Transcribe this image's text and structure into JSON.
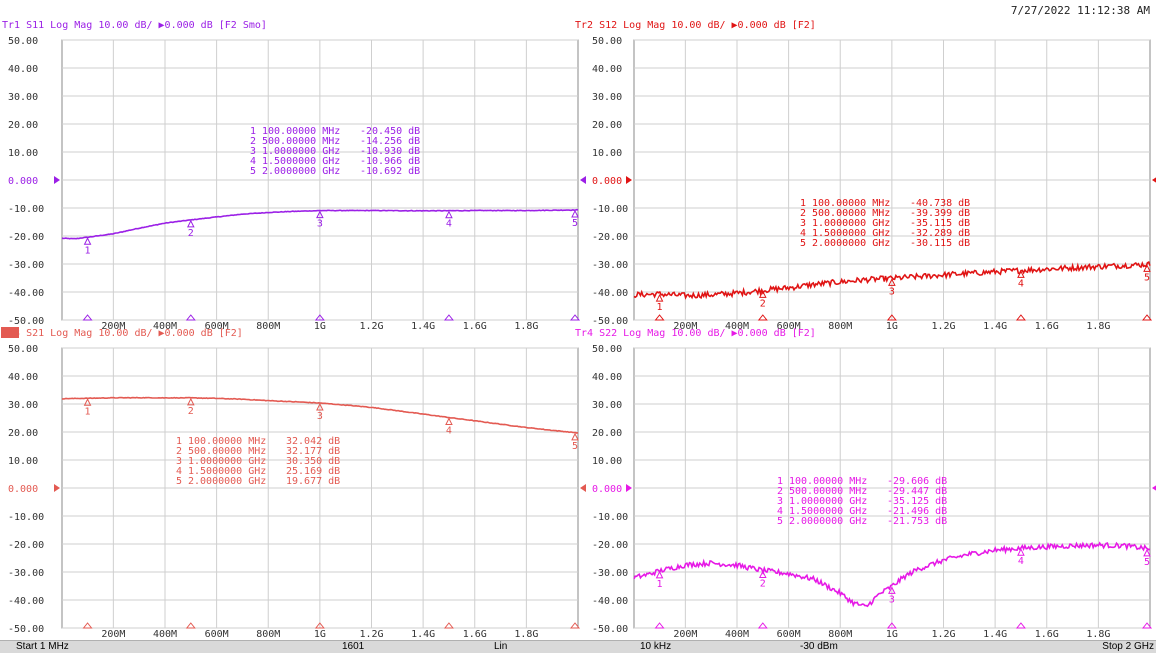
{
  "timestamp": "7/27/2022 11:12:38 AM",
  "status_bar": {
    "start": "Start 1 MHz",
    "points": "1601",
    "sweep_type": "Lin",
    "if_bw": "10 kHz",
    "power": "-30 dBm",
    "stop": "Stop 2 GHz"
  },
  "chart_data": [
    {
      "type": "line",
      "trace": "Tr1",
      "title": "Tr1 S11 Log Mag 10.00 dB/ ▶0.000 dB [F2 Smo]",
      "color": "#9b20e6",
      "ref_label": "0.000",
      "ylim": [
        -50,
        50
      ],
      "xlim": [
        0.001,
        2.0
      ],
      "y_ticks": [
        "50.00",
        "40.00",
        "30.00",
        "20.00",
        "10.00",
        "0.000",
        "-10.00",
        "-20.00",
        "-30.00",
        "-40.00",
        "-50.00"
      ],
      "x_ticks": [
        "200M",
        "400M",
        "600M",
        "800M",
        "1G",
        "1.2G",
        "1.4G",
        "1.6G",
        "1.8G"
      ],
      "x_tick_values": [
        0.2,
        0.4,
        0.6,
        0.8,
        1.0,
        1.2,
        1.4,
        1.6,
        1.8
      ],
      "x": [
        0.001,
        0.05,
        0.1,
        0.2,
        0.3,
        0.4,
        0.5,
        0.6,
        0.7,
        0.8,
        0.9,
        1.0,
        1.2,
        1.4,
        1.5,
        1.6,
        1.8,
        1.9,
        2.0
      ],
      "y": [
        -20.8,
        -21.0,
        -20.45,
        -19.2,
        -17.2,
        -15.4,
        -14.26,
        -13.2,
        -12.2,
        -11.6,
        -11.2,
        -10.93,
        -10.9,
        -11.0,
        -10.97,
        -10.9,
        -10.9,
        -10.8,
        -10.69
      ],
      "noise": 0.1,
      "markers": [
        {
          "label": "1",
          "freq": "100.00000 MHz",
          "value": "-20.450 dB",
          "x": 0.1,
          "y": -20.45
        },
        {
          "label": "2",
          "freq": "500.00000 MHz",
          "value": "-14.256 dB",
          "x": 0.5,
          "y": -14.256
        },
        {
          "label": "3",
          "freq": "1.0000000 GHz",
          "value": "-10.930 dB",
          "x": 1.0,
          "y": -10.93
        },
        {
          "label": "4",
          "freq": "1.5000000 GHz",
          "value": "-10.966 dB",
          "x": 1.5,
          "y": -10.966
        },
        {
          "label": "5",
          "freq": "2.0000000 GHz",
          "value": "-10.692 dB",
          "x": 2.0,
          "y": -10.692
        }
      ]
    },
    {
      "type": "line",
      "trace": "Tr2",
      "title": "Tr2 S12 Log Mag 10.00 dB/ ▶0.000 dB [F2]",
      "color": "#e01414",
      "ref_label": "0.000",
      "ylim": [
        -50,
        50
      ],
      "xlim": [
        0.001,
        2.0
      ],
      "y_ticks": [
        "50.00",
        "40.00",
        "30.00",
        "20.00",
        "10.00",
        "0.000",
        "-10.00",
        "-20.00",
        "-30.00",
        "-40.00",
        "-50.00"
      ],
      "x_ticks": [
        "200M",
        "400M",
        "600M",
        "800M",
        "1G",
        "1.2G",
        "1.4G",
        "1.6G",
        "1.8G"
      ],
      "x_tick_values": [
        0.2,
        0.4,
        0.6,
        0.8,
        1.0,
        1.2,
        1.4,
        1.6,
        1.8
      ],
      "x": [
        0.001,
        0.1,
        0.2,
        0.3,
        0.4,
        0.5,
        0.6,
        0.7,
        0.8,
        0.9,
        1.0,
        1.2,
        1.4,
        1.5,
        1.6,
        1.8,
        2.0
      ],
      "y": [
        -41.0,
        -40.74,
        -41.3,
        -41.0,
        -40.4,
        -39.4,
        -38.5,
        -37.3,
        -36.4,
        -35.6,
        -35.12,
        -33.9,
        -32.8,
        -32.29,
        -31.8,
        -30.9,
        -30.12
      ],
      "noise": 1.0,
      "markers": [
        {
          "label": "1",
          "freq": "100.00000 MHz",
          "value": "-40.738 dB",
          "x": 0.1,
          "y": -40.738
        },
        {
          "label": "2",
          "freq": "500.00000 MHz",
          "value": "-39.399 dB",
          "x": 0.5,
          "y": -39.399
        },
        {
          "label": "3",
          "freq": "1.0000000 GHz",
          "value": "-35.115 dB",
          "x": 1.0,
          "y": -35.115
        },
        {
          "label": "4",
          "freq": "1.5000000 GHz",
          "value": "-32.289 dB",
          "x": 1.5,
          "y": -32.289
        },
        {
          "label": "5",
          "freq": "2.0000000 GHz",
          "value": "-30.115 dB",
          "x": 2.0,
          "y": -30.115
        }
      ]
    },
    {
      "type": "line",
      "trace": "Tr3",
      "title": "Tr3 S21 Log Mag 10.00 dB/ ▶0.000 dB [F2]",
      "color": "#e35a52",
      "ref_label": "0.000",
      "ylim": [
        -50,
        50
      ],
      "xlim": [
        0.001,
        2.0
      ],
      "y_ticks": [
        "50.00",
        "40.00",
        "30.00",
        "20.00",
        "10.00",
        "0.000",
        "-10.00",
        "-20.00",
        "-30.00",
        "-40.00",
        "-50.00"
      ],
      "x_ticks": [
        "200M",
        "400M",
        "600M",
        "800M",
        "1G",
        "1.2G",
        "1.4G",
        "1.6G",
        "1.8G"
      ],
      "x_tick_values": [
        0.2,
        0.4,
        0.6,
        0.8,
        1.0,
        1.2,
        1.4,
        1.6,
        1.8
      ],
      "x": [
        0.001,
        0.1,
        0.2,
        0.3,
        0.4,
        0.5,
        0.6,
        0.7,
        0.8,
        0.9,
        1.0,
        1.1,
        1.2,
        1.3,
        1.4,
        1.5,
        1.6,
        1.7,
        1.8,
        1.9,
        2.0
      ],
      "y": [
        31.9,
        32.04,
        32.2,
        32.25,
        32.2,
        32.18,
        32.0,
        31.7,
        31.2,
        30.8,
        30.35,
        29.6,
        28.8,
        27.6,
        26.4,
        25.17,
        24.0,
        22.8,
        21.6,
        20.6,
        19.68
      ],
      "noise": 0.1,
      "markers": [
        {
          "label": "1",
          "freq": "100.00000 MHz",
          "value": "32.042 dB",
          "x": 0.1,
          "y": 32.042
        },
        {
          "label": "2",
          "freq": "500.00000 MHz",
          "value": "32.177 dB",
          "x": 0.5,
          "y": 32.177
        },
        {
          "label": "3",
          "freq": "1.0000000 GHz",
          "value": "30.350 dB",
          "x": 1.0,
          "y": 30.35
        },
        {
          "label": "4",
          "freq": "1.5000000 GHz",
          "value": "25.169 dB",
          "x": 1.5,
          "y": 25.169
        },
        {
          "label": "5",
          "freq": "2.0000000 GHz",
          "value": "19.677 dB",
          "x": 2.0,
          "y": 19.677
        }
      ]
    },
    {
      "type": "line",
      "trace": "Tr4",
      "title": "Tr4 S22 Log Mag 10.00 dB/ ▶0.000 dB [F2]",
      "color": "#e619e6",
      "ref_label": "0.000",
      "ylim": [
        -50,
        50
      ],
      "xlim": [
        0.001,
        2.0
      ],
      "y_ticks": [
        "50.00",
        "40.00",
        "30.00",
        "20.00",
        "10.00",
        "0.000",
        "-10.00",
        "-20.00",
        "-30.00",
        "-40.00",
        "-50.00"
      ],
      "x_ticks": [
        "200M",
        "400M",
        "600M",
        "800M",
        "1G",
        "1.2G",
        "1.4G",
        "1.6G",
        "1.8G"
      ],
      "x_tick_values": [
        0.2,
        0.4,
        0.6,
        0.8,
        1.0,
        1.2,
        1.4,
        1.6,
        1.8
      ],
      "x": [
        0.001,
        0.05,
        0.1,
        0.2,
        0.3,
        0.4,
        0.5,
        0.6,
        0.7,
        0.8,
        0.85,
        0.9,
        0.95,
        1.0,
        1.05,
        1.1,
        1.2,
        1.3,
        1.4,
        1.5,
        1.6,
        1.7,
        1.8,
        1.9,
        2.0
      ],
      "y": [
        -32.0,
        -31.0,
        -29.6,
        -27.5,
        -26.8,
        -27.6,
        -29.45,
        -30.6,
        -32.6,
        -37.6,
        -41.0,
        -42.5,
        -38.0,
        -35.1,
        -31.6,
        -29.0,
        -25.8,
        -23.6,
        -22.2,
        -21.5,
        -21.0,
        -20.6,
        -20.4,
        -20.6,
        -21.75
      ],
      "noise": 0.9,
      "markers": [
        {
          "label": "1",
          "freq": "100.00000 MHz",
          "value": "-29.606 dB",
          "x": 0.1,
          "y": -29.606
        },
        {
          "label": "2",
          "freq": "500.00000 MHz",
          "value": "-29.447 dB",
          "x": 0.5,
          "y": -29.447
        },
        {
          "label": "3",
          "freq": "1.0000000 GHz",
          "value": "-35.125 dB",
          "x": 1.0,
          "y": -35.125
        },
        {
          "label": "4",
          "freq": "1.5000000 GHz",
          "value": "-21.496 dB",
          "x": 1.5,
          "y": -21.496
        },
        {
          "label": "5",
          "freq": "2.0000000 GHz",
          "value": "-21.753 dB",
          "x": 2.0,
          "y": -21.753
        }
      ]
    }
  ]
}
